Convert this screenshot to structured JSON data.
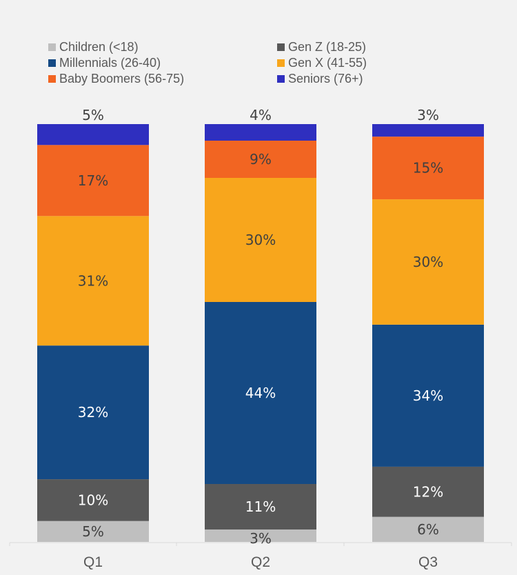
{
  "chart_data": {
    "type": "bar",
    "stacked": true,
    "categories": [
      "Q1",
      "Q2",
      "Q3"
    ],
    "series": [
      {
        "name": "Children (<18)",
        "color": "#bfbfbf",
        "values": [
          5,
          3,
          6
        ],
        "labels": [
          "5%",
          "3%",
          "6%"
        ]
      },
      {
        "name": "Gen Z (18-25)",
        "color": "#585858",
        "values": [
          10,
          11,
          12
        ],
        "labels": [
          "10%",
          "11%",
          "12%"
        ]
      },
      {
        "name": "Millennials (26-40)",
        "color": "#154a84",
        "values": [
          32,
          44,
          34
        ],
        "labels": [
          "32%",
          "44%",
          "34%"
        ]
      },
      {
        "name": "Gen X (41-55)",
        "color": "#f8a61c",
        "values": [
          31,
          30,
          30
        ],
        "labels": [
          "31%",
          "30%",
          "30%"
        ]
      },
      {
        "name": "Baby Boomers (56-75)",
        "color": "#f26522",
        "values": [
          17,
          9,
          15
        ],
        "labels": [
          "17%",
          "9%",
          "15%"
        ]
      },
      {
        "name": "Seniors (76+)",
        "color": "#2f2fbf",
        "values": [
          5,
          4,
          3
        ],
        "labels": [
          "5%",
          "4%",
          "3%"
        ]
      }
    ],
    "legend_position": "top",
    "grid": false,
    "title": "",
    "xlabel": "",
    "ylabel": ""
  },
  "legend_order": [
    0,
    1,
    2,
    3,
    4,
    5
  ]
}
